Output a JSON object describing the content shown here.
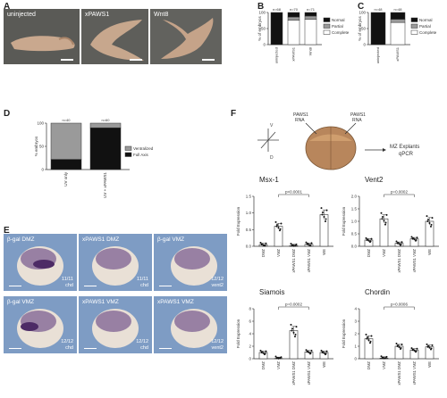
{
  "panels": {
    "A": "A",
    "B": "B",
    "C": "C",
    "D": "D",
    "E": "E",
    "F": "F"
  },
  "panelA": {
    "photos": [
      "uninjected",
      "xPAWS1",
      "Wnt8"
    ]
  },
  "panelB": {
    "chart_data": {
      "type": "bar",
      "ylabel": "% of embryos",
      "categories": [
        "uninjected",
        "xPAWS1",
        "Wnt8"
      ],
      "ns": [
        "n=68",
        "n=70",
        "n=71"
      ],
      "series": [
        {
          "name": "Complete",
          "color": "#ffffff",
          "values": [
            0,
            76,
            79
          ]
        },
        {
          "name": "Partial",
          "color": "#9a9a9a",
          "values": [
            0,
            10,
            10
          ]
        },
        {
          "name": "Normal",
          "color": "#111111",
          "values": [
            100,
            14,
            11
          ]
        }
      ],
      "ylim": [
        0,
        100
      ],
      "yticks": [
        0,
        50,
        100
      ]
    }
  },
  "panelC": {
    "chart_data": {
      "type": "bar",
      "ylabel": "% of embryos",
      "categories": [
        "uninjected",
        "xPAWS1"
      ],
      "ns": [
        "n=48",
        "n=48"
      ],
      "series": [
        {
          "name": "Complete",
          "color": "#ffffff",
          "values": [
            0,
            69
          ]
        },
        {
          "name": "Partial",
          "color": "#9a9a9a",
          "values": [
            0,
            10
          ]
        },
        {
          "name": "Normal",
          "color": "#111111",
          "values": [
            100,
            21
          ]
        }
      ],
      "ylim": [
        0,
        100
      ],
      "yticks": [
        0,
        50,
        100
      ]
    }
  },
  "panelD": {
    "chart_data": {
      "type": "bar",
      "ylabel": "% embryos",
      "categories": [
        "UV only",
        "UV + xPAWS1"
      ],
      "ns": [
        "n=40",
        "n=60"
      ],
      "series": [
        {
          "name": "Full Axis",
          "color": "#111111",
          "values": [
            22,
            90
          ]
        },
        {
          "name": "Ventralized",
          "color": "#9a9a9a",
          "values": [
            78,
            10
          ]
        }
      ],
      "ylim": [
        0,
        100
      ],
      "yticks": [
        0,
        50,
        100
      ]
    }
  },
  "panelE": {
    "photos": [
      {
        "title": "β-gal DMZ",
        "count": "11/11",
        "gene": "chd"
      },
      {
        "title": "xPAWS1 DMZ",
        "count": "11/11",
        "gene": "chd"
      },
      {
        "title": "β-gal VMZ",
        "count": "12/12",
        "gene": "vent2"
      },
      {
        "title": "β-gal VMZ",
        "count": "12/12",
        "gene": "chd"
      },
      {
        "title": "xPAWS1 VMZ",
        "count": "12/12",
        "gene": "chd"
      },
      {
        "title": "xPAWS1 VMZ",
        "count": "12/12",
        "gene": "vent2"
      }
    ]
  },
  "panelF": {
    "schematic": {
      "rna1": "PAWS1\nRNA",
      "rna2": "PAWS1\nRNA",
      "result": "MZ Explants\nqPCR",
      "axisV": "V",
      "axisD": "D"
    },
    "categories": [
      "DMZ",
      "VMZ",
      "xPAWS1 DMZ",
      "xPAWS1 VMZ",
      "WE"
    ],
    "ylabel": "Fold Expression",
    "charts": [
      {
        "title": "Msx-1",
        "pval": "p<0.0001",
        "bracket": [
          1,
          3
        ],
        "ylim": [
          0,
          1.5
        ],
        "yticks": [
          "0.0",
          "0.5",
          "1.0",
          "1.5"
        ],
        "values": [
          0.05,
          0.6,
          0.02,
          0.06,
          0.95
        ]
      },
      {
        "title": "Vent2",
        "pval": "p=0.0002",
        "bracket": [
          1,
          3
        ],
        "ylim": [
          0,
          2.0
        ],
        "yticks": [
          "0.0",
          "0.5",
          "1.0",
          "1.5",
          "2.0"
        ],
        "values": [
          0.25,
          1.1,
          0.12,
          0.3,
          1.0
        ]
      },
      {
        "title": "Siamois",
        "pval": "p=0.0002",
        "bracket": [
          1,
          3
        ],
        "ylim": [
          0,
          8
        ],
        "yticks": [
          "0",
          "2",
          "4",
          "6",
          "8"
        ],
        "values": [
          1.0,
          0.05,
          4.5,
          1.1,
          1.0
        ]
      },
      {
        "title": "Chordin",
        "pval": "p=0.0006",
        "bracket": [
          1,
          3
        ],
        "ylim": [
          0,
          4
        ],
        "yticks": [
          "0",
          "1",
          "2",
          "3",
          "4"
        ],
        "values": [
          1.6,
          0.05,
          1.0,
          0.7,
          0.95
        ]
      }
    ]
  }
}
